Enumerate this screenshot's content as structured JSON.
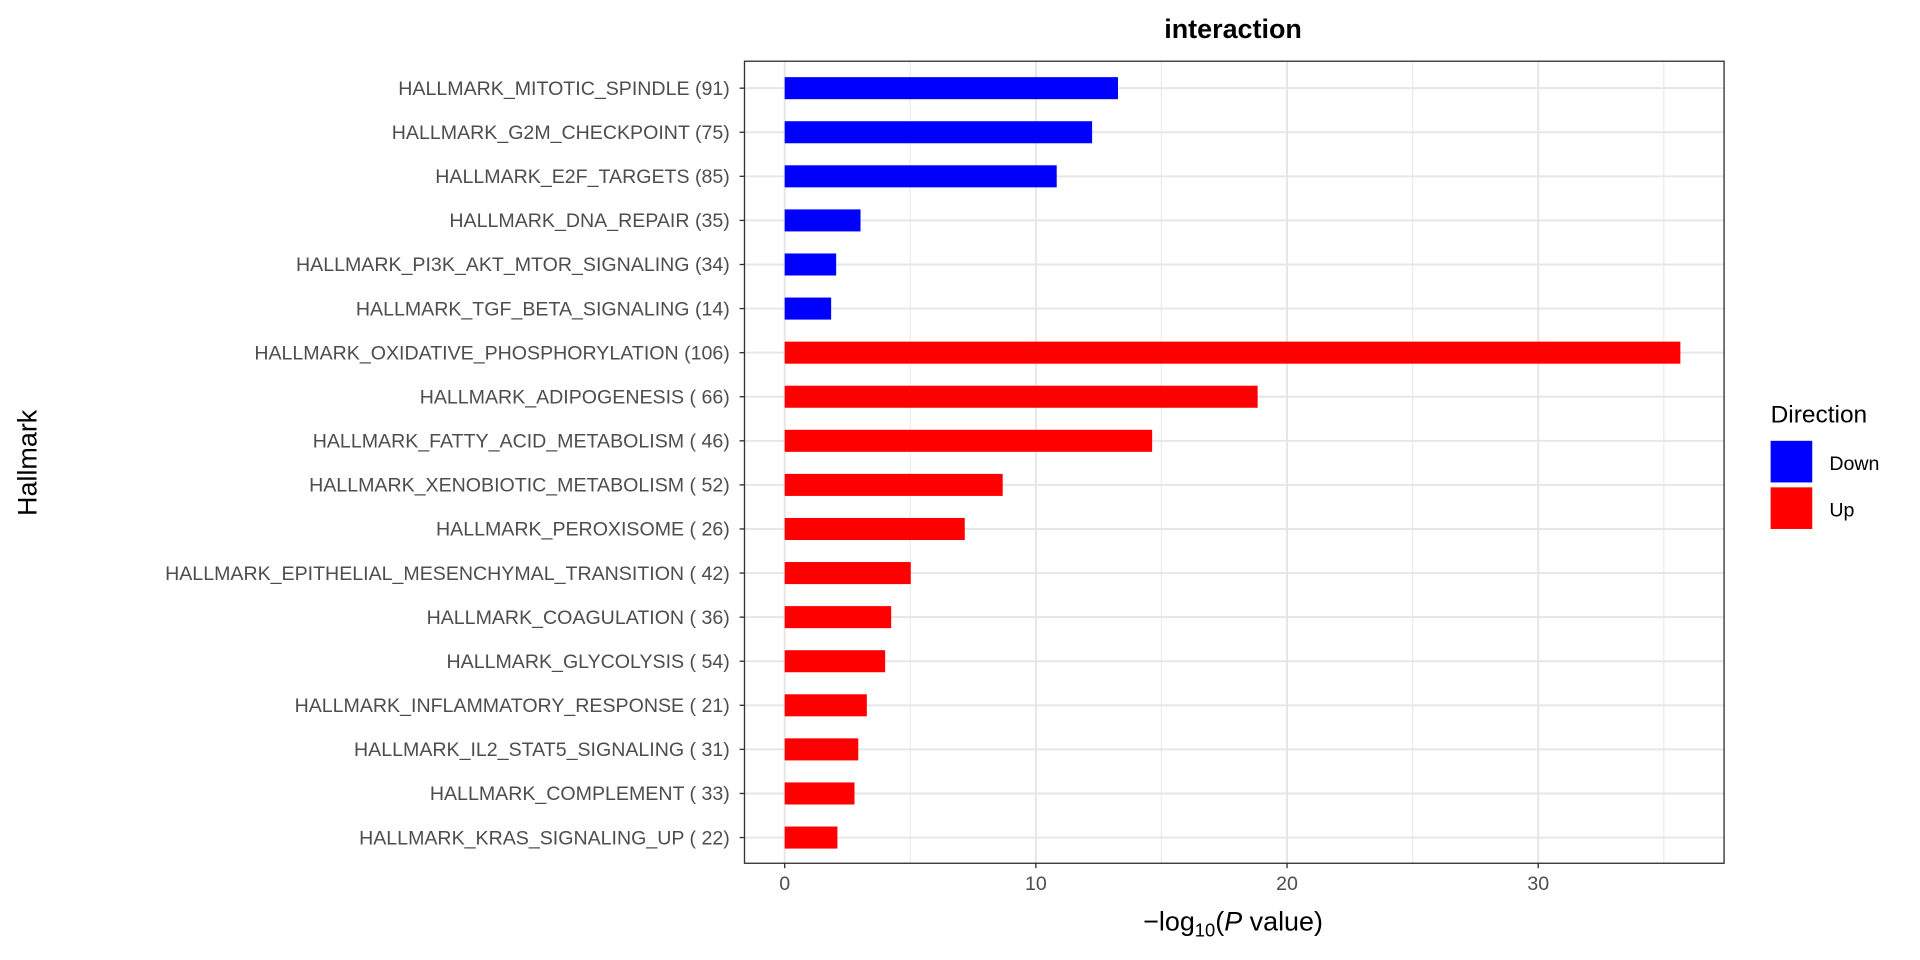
{
  "chart_data": {
    "type": "bar",
    "orientation": "horizontal",
    "title": "interaction",
    "xlabel": "-log10(P value)",
    "xlabel_parts": {
      "prefix": "−log",
      "sub": "10",
      "open": "(",
      "italic": "P",
      "rest": " value)"
    },
    "ylabel": "Hallmark",
    "xlim": [
      -1.6,
      37.4
    ],
    "xticks": [
      0,
      10,
      20,
      30
    ],
    "xticklabels": [
      "0",
      "10",
      "20",
      "30"
    ],
    "grid": true,
    "legend": {
      "title": "Direction",
      "position": "right",
      "entries": [
        {
          "label": "Down",
          "color": "#0000ff"
        },
        {
          "label": "Up",
          "color": "#ff0000"
        }
      ]
    },
    "categories": [
      "HALLMARK_MITOTIC_SPINDLE (91)",
      "HALLMARK_G2M_CHECKPOINT (75)",
      "HALLMARK_E2F_TARGETS (85)",
      "HALLMARK_DNA_REPAIR (35)",
      "HALLMARK_PI3K_AKT_MTOR_SIGNALING (34)",
      "HALLMARK_TGF_BETA_SIGNALING (14)",
      "HALLMARK_OXIDATIVE_PHOSPHORYLATION (106)",
      "HALLMARK_ADIPOGENESIS ( 66)",
      "HALLMARK_FATTY_ACID_METABOLISM ( 46)",
      "HALLMARK_XENOBIOTIC_METABOLISM ( 52)",
      "HALLMARK_PEROXISOME ( 26)",
      "HALLMARK_EPITHELIAL_MESENCHYMAL_TRANSITION ( 42)",
      "HALLMARK_COAGULATION ( 36)",
      "HALLMARK_GLYCOLYSIS ( 54)",
      "HALLMARK_INFLAMMATORY_RESPONSE ( 21)",
      "HALLMARK_IL2_STAT5_SIGNALING ( 31)",
      "HALLMARK_COMPLEMENT ( 33)",
      "HALLMARK_KRAS_SIGNALING_UP ( 22)"
    ],
    "values": [
      13.27,
      12.24,
      10.83,
      3.02,
      2.05,
      1.85,
      35.66,
      18.83,
      14.63,
      8.68,
      7.17,
      5.02,
      4.24,
      4.0,
      3.27,
      2.93,
      2.78,
      2.1
    ],
    "direction": [
      "Down",
      "Down",
      "Down",
      "Down",
      "Down",
      "Down",
      "Up",
      "Up",
      "Up",
      "Up",
      "Up",
      "Up",
      "Up",
      "Up",
      "Up",
      "Up",
      "Up",
      "Up"
    ]
  }
}
